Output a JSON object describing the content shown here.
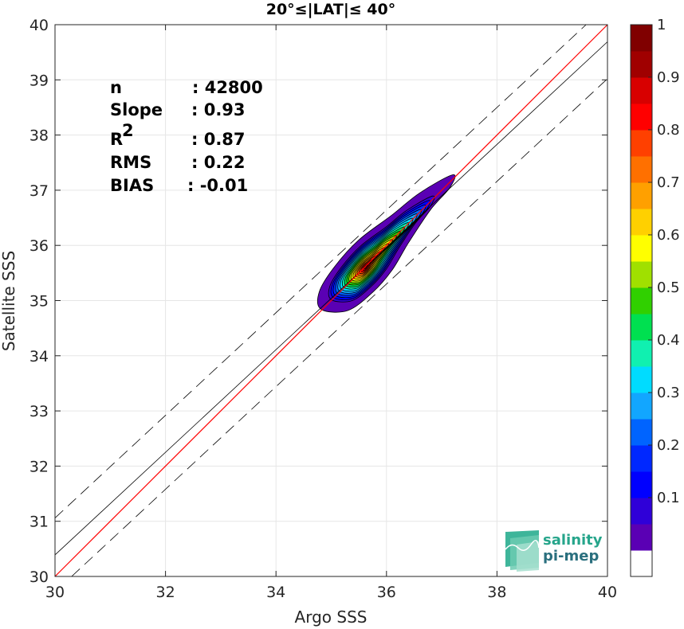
{
  "chart_data": {
    "type": "contour",
    "title": "20°≤|LAT|≤ 40°",
    "xlabel": "Argo SSS",
    "ylabel": "Satellite SSS",
    "xlim": [
      30,
      40
    ],
    "ylim": [
      30,
      40
    ],
    "xticks": [
      "30",
      "32",
      "34",
      "36",
      "38",
      "40"
    ],
    "yticks": [
      "30",
      "31",
      "32",
      "33",
      "34",
      "35",
      "36",
      "37",
      "38",
      "39",
      "40"
    ],
    "grid": true,
    "stats": [
      {
        "label": "n",
        "value": ": 42800"
      },
      {
        "label": "Slope",
        "value": ": 0.93"
      },
      {
        "label": "R",
        "sup": "2",
        "value": ": 0.87"
      },
      {
        "label": "RMS",
        "value": ": 0.22"
      },
      {
        "label": "BIAS",
        "value": ": -0.01"
      }
    ],
    "lines": {
      "identity": {
        "slope": 1,
        "intercept": 0,
        "color": "#ff0000"
      },
      "fit": {
        "slope": 0.93,
        "intercept": 2.49,
        "color": "#000000"
      },
      "upper_bound": {
        "slope": 0.93,
        "intercept": 3.16,
        "style": "dashed"
      },
      "lower_bound": {
        "slope": 0.93,
        "intercept": 1.82,
        "style": "dashed"
      }
    },
    "density": {
      "peak": [
        35.62,
        35.6
      ],
      "levels": [
        0.05,
        0.1,
        0.15,
        0.2,
        0.25,
        0.3,
        0.35,
        0.4,
        0.45,
        0.5,
        0.55,
        0.6,
        0.65,
        0.7,
        0.75,
        0.8,
        0.85,
        0.9,
        0.95
      ],
      "outline": [
        [
          35.3,
          34.82
        ],
        [
          34.82,
          34.84
        ],
        [
          34.78,
          35.15
        ],
        [
          35.05,
          35.6
        ],
        [
          35.5,
          36.1
        ],
        [
          36.1,
          36.55
        ],
        [
          36.6,
          36.95
        ],
        [
          37.2,
          37.28
        ],
        [
          37.15,
          37.05
        ],
        [
          36.8,
          36.65
        ],
        [
          36.4,
          36.05
        ],
        [
          36.1,
          35.55
        ],
        [
          35.75,
          35.15
        ]
      ]
    },
    "colorbar": {
      "ticks": [
        "0.1",
        "0.2",
        "0.3",
        "0.4",
        "0.5",
        "0.6",
        "0.7",
        "0.8",
        "0.9",
        "1"
      ],
      "bands": [
        "#ffffff",
        "#5a00b4",
        "#2f00d8",
        "#0000ff",
        "#0028ff",
        "#0064ff",
        "#12a6ff",
        "#00dcff",
        "#10f0b0",
        "#00e050",
        "#30d000",
        "#a0e000",
        "#ffff00",
        "#ffd000",
        "#ffa000",
        "#ff7000",
        "#ff4000",
        "#ff0000",
        "#d80000",
        "#a00000",
        "#800000"
      ]
    }
  },
  "logo": {
    "line1": "salinity",
    "line2": "pi-mep"
  }
}
